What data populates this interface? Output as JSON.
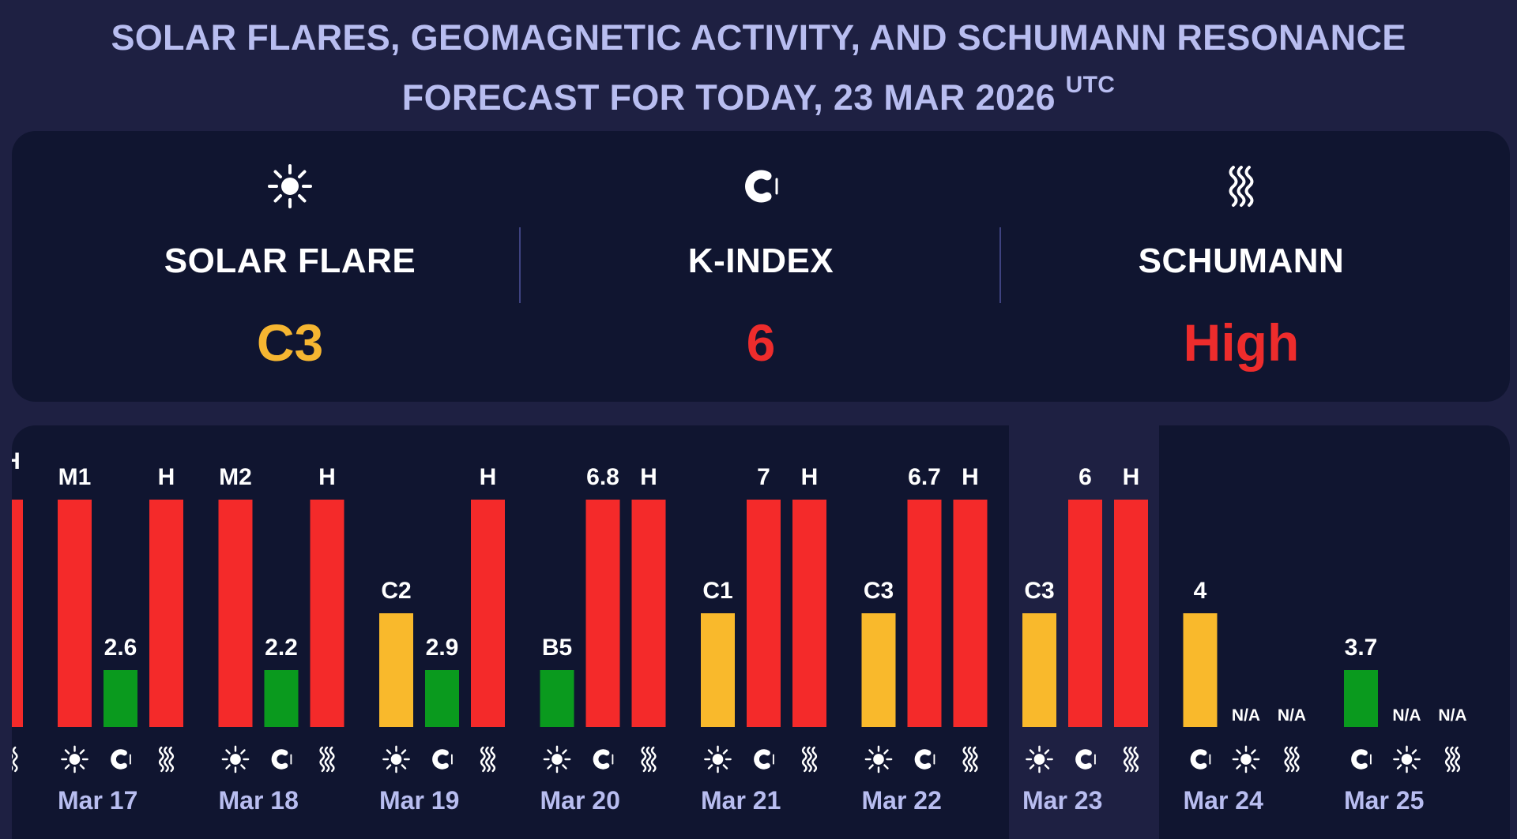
{
  "title": {
    "line1": "SOLAR FLARES, GEOMAGNETIC ACTIVITY, AND SCHUMANN RESONANCE",
    "line2": "FORECAST FOR TODAY, 23 MAR 2026",
    "tz": "UTC"
  },
  "summary": {
    "solar": {
      "icon": "sun-icon",
      "label": "SOLAR FLARE",
      "value": "C3",
      "color": "#f6b631"
    },
    "kindex": {
      "icon": "magnet-icon",
      "label": "K-INDEX",
      "value": "6",
      "color": "#ee2c2c"
    },
    "schumann": {
      "icon": "waves-icon",
      "label": "SCHUMANN",
      "value": "High",
      "color": "#ee2c2c"
    }
  },
  "colors": {
    "red": "#f42a2a",
    "yellow": "#f9b92c",
    "green": "#0a9a1e",
    "highlight": "#1e2042",
    "panel": "#101530"
  },
  "chart_data": {
    "type": "bar",
    "series_order": [
      "solar_flare",
      "k_index",
      "schumann"
    ],
    "level_scale": {
      "green": 1,
      "yellow": 2,
      "red": 4
    },
    "highlight_day": "Mar 23",
    "partial_left_label": "H",
    "days": [
      {
        "date": "Mar 17",
        "bars": [
          {
            "series": "solar_flare",
            "label": "M1",
            "level": "red"
          },
          {
            "series": "k_index",
            "label": "2.6",
            "level": "green"
          },
          {
            "series": "schumann",
            "label": "H",
            "level": "red"
          }
        ],
        "icons": [
          "sun-icon",
          "magnet-icon",
          "waves-icon"
        ]
      },
      {
        "date": "Mar 18",
        "bars": [
          {
            "series": "solar_flare",
            "label": "M2",
            "level": "red"
          },
          {
            "series": "k_index",
            "label": "2.2",
            "level": "green"
          },
          {
            "series": "schumann",
            "label": "H",
            "level": "red"
          }
        ],
        "icons": [
          "sun-icon",
          "magnet-icon",
          "waves-icon"
        ]
      },
      {
        "date": "Mar 19",
        "bars": [
          {
            "series": "solar_flare",
            "label": "C2",
            "level": "yellow"
          },
          {
            "series": "k_index",
            "label": "2.9",
            "level": "green"
          },
          {
            "series": "schumann",
            "label": "H",
            "level": "red"
          }
        ],
        "icons": [
          "sun-icon",
          "magnet-icon",
          "waves-icon"
        ]
      },
      {
        "date": "Mar 20",
        "bars": [
          {
            "series": "solar_flare",
            "label": "B5",
            "level": "green"
          },
          {
            "series": "k_index",
            "label": "6.8",
            "level": "red"
          },
          {
            "series": "schumann",
            "label": "H",
            "level": "red"
          }
        ],
        "icons": [
          "sun-icon",
          "magnet-icon",
          "waves-icon"
        ]
      },
      {
        "date": "Mar 21",
        "bars": [
          {
            "series": "solar_flare",
            "label": "C1",
            "level": "yellow"
          },
          {
            "series": "k_index",
            "label": "7",
            "level": "red"
          },
          {
            "series": "schumann",
            "label": "H",
            "level": "red"
          }
        ],
        "icons": [
          "sun-icon",
          "magnet-icon",
          "waves-icon"
        ]
      },
      {
        "date": "Mar 22",
        "bars": [
          {
            "series": "solar_flare",
            "label": "C3",
            "level": "yellow"
          },
          {
            "series": "k_index",
            "label": "6.7",
            "level": "red"
          },
          {
            "series": "schumann",
            "label": "H",
            "level": "red"
          }
        ],
        "icons": [
          "sun-icon",
          "magnet-icon",
          "waves-icon"
        ]
      },
      {
        "date": "Mar 23",
        "bars": [
          {
            "series": "solar_flare",
            "label": "C3",
            "level": "yellow"
          },
          {
            "series": "k_index",
            "label": "6",
            "level": "red"
          },
          {
            "series": "schumann",
            "label": "H",
            "level": "red"
          }
        ],
        "icons": [
          "sun-icon",
          "magnet-icon",
          "waves-icon"
        ]
      },
      {
        "date": "Mar 24",
        "bars": [
          {
            "series": "k_index",
            "label": "4",
            "level": "yellow"
          },
          {
            "series": "solar_flare",
            "label": "N/A",
            "level": "none"
          },
          {
            "series": "schumann",
            "label": "N/A",
            "level": "none"
          }
        ],
        "icons": [
          "magnet-icon",
          "sun-icon",
          "waves-icon"
        ]
      },
      {
        "date": "Mar 25",
        "bars": [
          {
            "series": "k_index",
            "label": "3.7",
            "level": "green"
          },
          {
            "series": "solar_flare",
            "label": "N/A",
            "level": "none"
          },
          {
            "series": "schumann",
            "label": "N/A",
            "level": "none"
          }
        ],
        "icons": [
          "magnet-icon",
          "sun-icon",
          "waves-icon"
        ]
      }
    ]
  }
}
